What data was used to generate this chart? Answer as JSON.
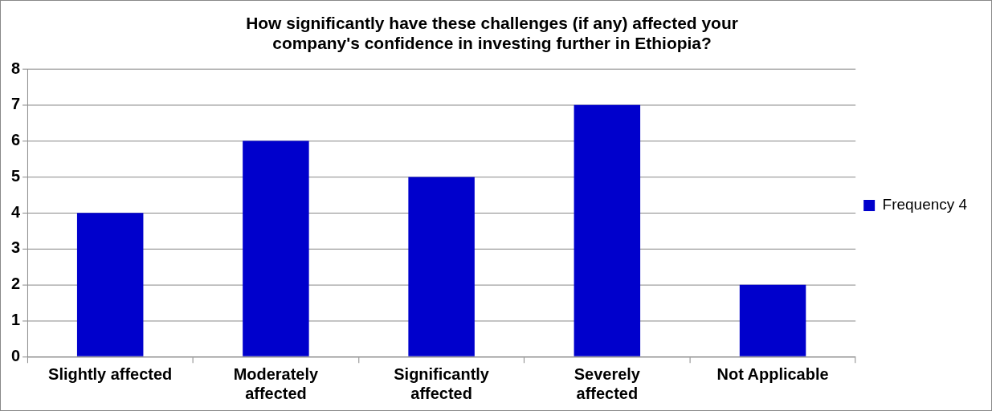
{
  "chart_data": {
    "type": "bar",
    "title": "How significantly have these challenges (if any) affected your company's confidence in investing further in Ethiopia?",
    "categories": [
      "Slightly affected",
      "Moderately affected",
      "Significantly affected",
      "Severely affected",
      "Not Applicable"
    ],
    "series": [
      {
        "name": "Frequency 4",
        "color": "#0000cc",
        "values": [
          4,
          6,
          5,
          7,
          2
        ]
      }
    ],
    "ylim": [
      0,
      8
    ],
    "yticks": [
      0,
      1,
      2,
      3,
      4,
      5,
      6,
      7,
      8
    ],
    "grid": "y",
    "legend": "right"
  }
}
